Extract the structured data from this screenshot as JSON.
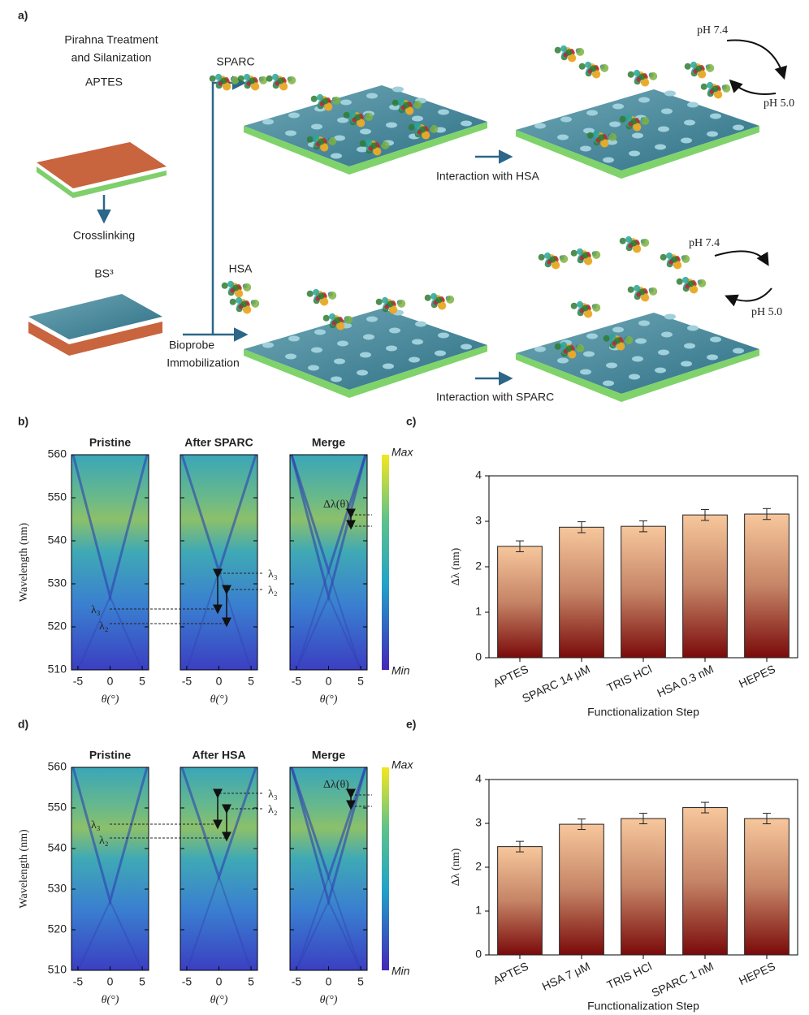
{
  "panel_labels": [
    "a)",
    "b)",
    "c)",
    "d)",
    "e)"
  ],
  "diagram": {
    "pretreatment": [
      "Pirahna Treatment",
      "and Silanization"
    ],
    "aptes": "APTES",
    "crosslinking": "Crosslinking",
    "bs3": "BS³",
    "immobilization": [
      "Bioprobe",
      "Immobilization"
    ],
    "probe_top": "SPARC",
    "probe_bottom": "HSA",
    "interaction_top": "Interaction with HSA",
    "interaction_bottom": "Interaction with SPARC",
    "ph_top": [
      "pH 7.4",
      "pH 5.0"
    ],
    "ph_bottom": [
      "pH 7.4",
      "pH 5.0"
    ]
  },
  "spectra": [
    {
      "titles": [
        "Pristine",
        "After SPARC",
        "Merge"
      ],
      "x_label": "θ(°)",
      "y_label": "Wavelength (nm)",
      "xlim": [
        -6,
        6
      ],
      "xticks": [
        -5,
        0,
        5
      ],
      "ylim": [
        510,
        560
      ],
      "yticks": [
        510,
        520,
        530,
        540,
        550,
        560
      ],
      "colorbar_labels": [
        "Max",
        "Min"
      ],
      "annotations": [
        "λ₃",
        "λ₂",
        "λ₃",
        "λ₂",
        "Δλ(θ)"
      ]
    },
    {
      "titles": [
        "Pristine",
        "After HSA",
        "Merge"
      ],
      "x_label": "θ(°)",
      "y_label": "Wavelength (nm)",
      "xlim": [
        -6,
        6
      ],
      "xticks": [
        -5,
        0,
        5
      ],
      "ylim": [
        510,
        560
      ],
      "yticks": [
        510,
        520,
        530,
        540,
        550,
        560
      ],
      "colorbar_labels": [
        "Max",
        "Min"
      ],
      "annotations": [
        "λ₃",
        "λ₂",
        "λ₃",
        "λ₂",
        "Δλ(θ)"
      ]
    }
  ],
  "chart_data": [
    {
      "type": "bar",
      "x_label": "Functionalization Step",
      "y_label": "Δλ (nm)",
      "categories": [
        "APTES",
        "SPARC 14 μM",
        "TRIS HCl",
        "HSA 0.3 nM",
        "HEPES"
      ],
      "values": [
        2.45,
        2.87,
        2.89,
        3.14,
        3.16
      ],
      "errors": [
        0.12,
        0.12,
        0.12,
        0.12,
        0.12
      ],
      "ylim": [
        0,
        4
      ],
      "yticks": [
        0,
        1,
        2,
        3,
        4
      ]
    },
    {
      "type": "bar",
      "x_label": "Functionalization Step",
      "y_label": "Δλ (nm)",
      "categories": [
        "APTES",
        "HSA 7 μM",
        "TRIS HCl",
        "SPARC 1 nM",
        "HEPES"
      ],
      "values": [
        2.47,
        2.98,
        3.11,
        3.36,
        3.11
      ],
      "errors": [
        0.12,
        0.12,
        0.12,
        0.12,
        0.12
      ],
      "ylim": [
        0,
        4
      ],
      "yticks": [
        0,
        1,
        2,
        3,
        4
      ]
    }
  ]
}
